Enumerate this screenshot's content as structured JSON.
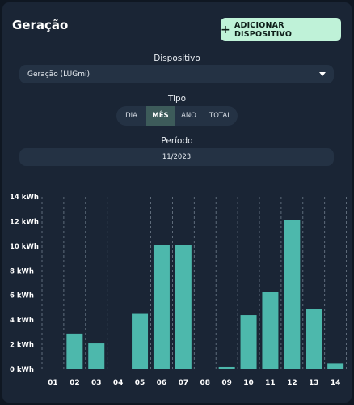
{
  "header": {
    "title": "Geração",
    "add_button_label": "ADICIONAR DISPOSITIVO"
  },
  "device": {
    "label": "Dispositivo",
    "selected": "Geração (LUGmi)"
  },
  "type": {
    "label": "Tipo",
    "tabs": [
      "DIA",
      "MÊS",
      "ANO",
      "TOTAL"
    ],
    "active_index": 1
  },
  "period": {
    "label": "Período",
    "value": "11/2023"
  },
  "colors": {
    "bar": "#4db8ac",
    "accent_button": "#bff2d8",
    "card": "#1a2535"
  },
  "chart_data": {
    "type": "bar",
    "categories": [
      "01",
      "02",
      "03",
      "04",
      "05",
      "06",
      "07",
      "08",
      "09",
      "10",
      "11",
      "12",
      "13",
      "14"
    ],
    "values": [
      0,
      2.9,
      2.1,
      0,
      4.5,
      10.1,
      10.1,
      0,
      0.2,
      4.4,
      6.3,
      12.1,
      4.9,
      0.5
    ],
    "ylim": [
      0,
      14
    ],
    "ytick_values": [
      0,
      2,
      4,
      6,
      8,
      10,
      12,
      14
    ],
    "ytick_labels": [
      "0 kWh",
      "2 kWh",
      "4 kWh",
      "6 kWh",
      "8 kWh",
      "10 kWh",
      "12 kWh",
      "14 kWh"
    ],
    "grid": "vertical-dashed"
  }
}
